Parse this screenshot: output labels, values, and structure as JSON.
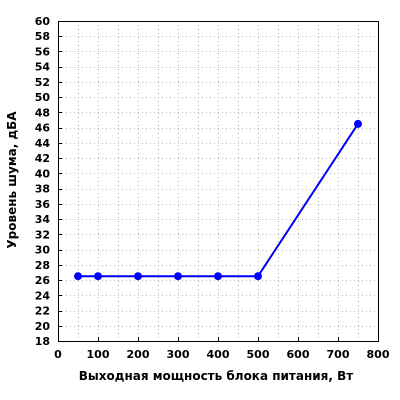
{
  "chart_data": {
    "type": "line",
    "xlabel": "Выходная мощность блока питания, Вт",
    "ylabel": "Уровень шума, дБА",
    "xlim": [
      0,
      800
    ],
    "ylim": [
      18,
      60
    ],
    "x_ticks": [
      "0",
      "100",
      "200",
      "300",
      "400",
      "500",
      "600",
      "700",
      "800"
    ],
    "y_ticks": [
      "18",
      "20",
      "22",
      "24",
      "26",
      "28",
      "30",
      "32",
      "34",
      "36",
      "38",
      "40",
      "42",
      "44",
      "46",
      "48",
      "50",
      "52",
      "54",
      "56",
      "58",
      "60"
    ],
    "grid": true,
    "series": [
      {
        "color": "#0000ff",
        "x": [
          50,
          100,
          200,
          300,
          400,
          500,
          750
        ],
        "y": [
          26.5,
          26.5,
          26.5,
          26.5,
          26.5,
          26.5,
          46.5
        ]
      }
    ]
  }
}
